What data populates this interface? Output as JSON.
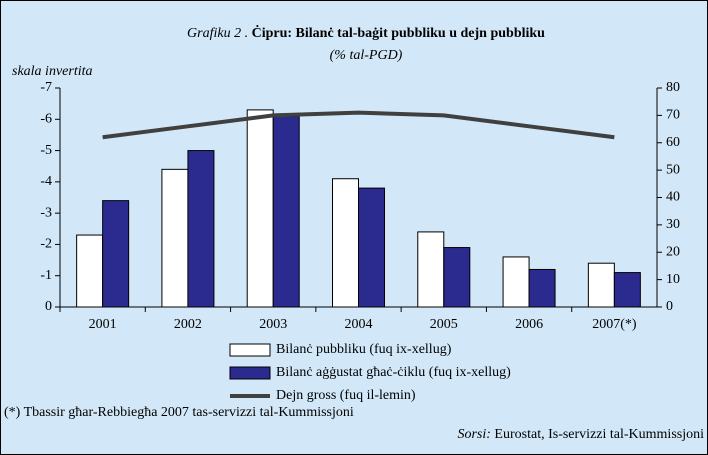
{
  "chart_data": {
    "type": "bar_line",
    "title_prefix": "Grafiku 2 .",
    "title": "Ċipru: Bilanċ tal-baġit pubbliku u dejn pubbliku",
    "subtitle": "(% tal-PGD)",
    "y_axis_label": "skala invertita",
    "y_inverted": true,
    "categories": [
      "2001",
      "2002",
      "2003",
      "2004",
      "2005",
      "2006",
      "2007(*)"
    ],
    "series": [
      {
        "name": "Bilanċ pubbliku (fuq ix-xellug)",
        "color": "#ffffff",
        "type": "bar",
        "values": [
          -2.3,
          -4.4,
          -6.3,
          -4.1,
          -2.4,
          -1.6,
          -1.4
        ]
      },
      {
        "name": "Bilanċ aġġustat għaċ-ċiklu (fuq ix-xellug)",
        "color": "#2b2b8f",
        "type": "bar",
        "values": [
          -3.4,
          -5.0,
          -6.1,
          -3.8,
          -1.9,
          -1.2,
          -1.1
        ]
      },
      {
        "name": "Dejn gross (fuq il-lemin)",
        "color": "#404040",
        "type": "line",
        "axis": "y2",
        "values": [
          62,
          66,
          70,
          71,
          70,
          66,
          62
        ]
      }
    ],
    "ylim": [
      -7,
      0
    ],
    "yticks": [
      -7,
      -6,
      -5,
      -4,
      -3,
      -2,
      -1,
      0
    ],
    "y2lim": [
      0,
      80
    ],
    "y2ticks": [
      0,
      10,
      20,
      30,
      40,
      50,
      60,
      70,
      80
    ],
    "footnote": "(*) Tbassir għar-Rebbiegħa 2007 tas-servizzi tal-Kummissjoni",
    "source_label": "Sorsi:",
    "source": "Eurostat, Is-servizzi tal-Kummissjoni"
  }
}
